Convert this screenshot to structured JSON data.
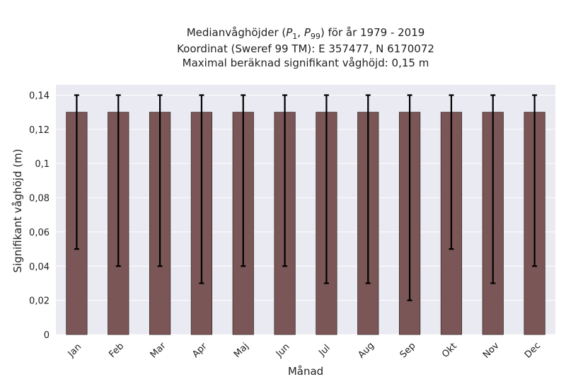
{
  "chart_data": {
    "type": "bar",
    "title_lines": [
      "Medianvåghöjder (P1, P99) för år 1979 - 2019",
      "Koordinat (Sweref 99 TM): E 357477, N 6170072",
      "Maximal beräknad signifikant våghöjd: 0,15 m"
    ],
    "xlabel": "Månad",
    "ylabel": "Signifikant våghöjd (m)",
    "categories": [
      "Jan",
      "Feb",
      "Mar",
      "Apr",
      "Maj",
      "Jun",
      "Jul",
      "Aug",
      "Sep",
      "Okt",
      "Nov",
      "Dec"
    ],
    "values": [
      0.13,
      0.13,
      0.13,
      0.13,
      0.13,
      0.13,
      0.13,
      0.13,
      0.13,
      0.13,
      0.13,
      0.13
    ],
    "error_low": [
      0.05,
      0.04,
      0.04,
      0.03,
      0.04,
      0.04,
      0.03,
      0.03,
      0.02,
      0.05,
      0.03,
      0.04
    ],
    "error_high": [
      0.14,
      0.14,
      0.14,
      0.14,
      0.14,
      0.14,
      0.14,
      0.14,
      0.14,
      0.14,
      0.14,
      0.14
    ],
    "yticks": [
      0,
      0.02,
      0.04,
      0.06,
      0.08,
      0.1,
      0.12,
      0.14
    ],
    "ytick_labels": [
      "0",
      "0,02",
      "0,04",
      "0,06",
      "0,08",
      "0,1",
      "0,12",
      "0,14"
    ],
    "ylim": [
      0,
      0.146
    ],
    "grid": true,
    "legend": "none",
    "colors": {
      "bar": "#7b5656",
      "bar_edge": "#3d2b2b",
      "error_bar": "#000000",
      "plot_background": "#eaeaf2",
      "grid": "#ffffff"
    }
  }
}
